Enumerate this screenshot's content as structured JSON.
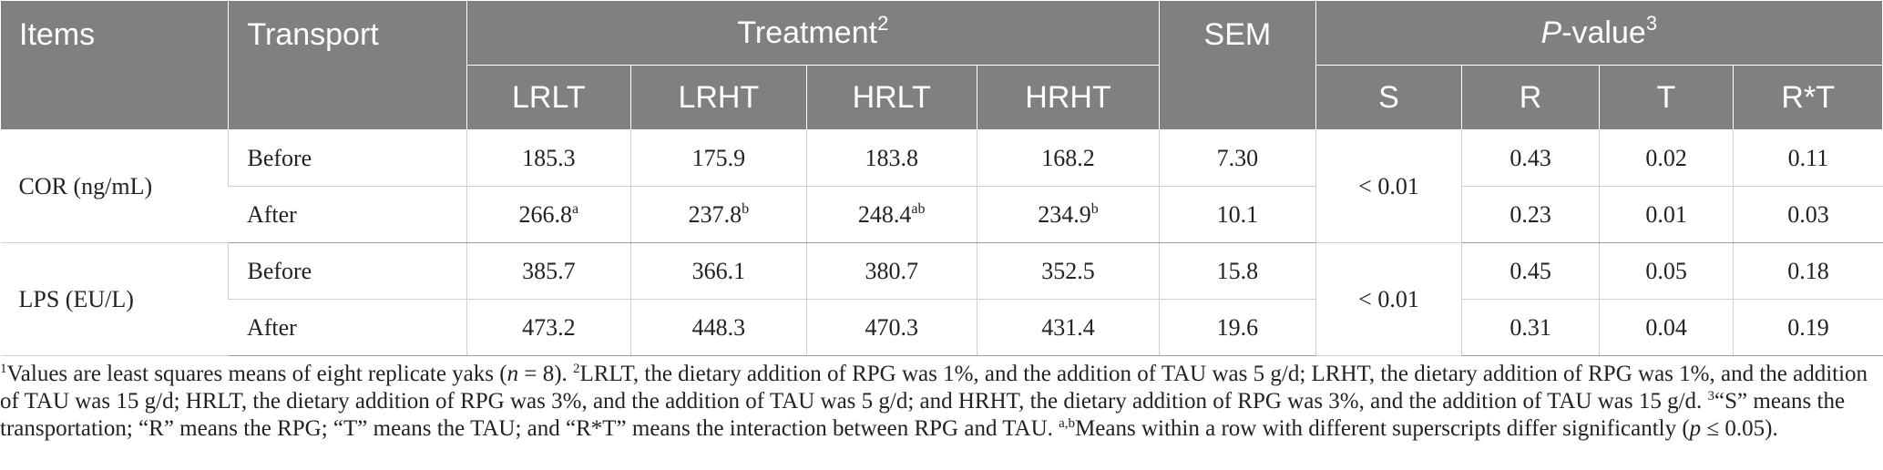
{
  "header": {
    "items": "Items",
    "transport": "Transport",
    "treatment": "Treatment",
    "treatment_sup": "2",
    "sem": "SEM",
    "pvalue_p": "P",
    "pvalue_rest": "-value",
    "pvalue_sup": "3",
    "treatments": [
      "LRLT",
      "LRHT",
      "HRLT",
      "HRHT"
    ],
    "effects": [
      "S",
      "R",
      "T",
      "R*T"
    ]
  },
  "rows": [
    {
      "item": "COR (ng/mL)",
      "s": "< 0.01",
      "sub": [
        {
          "transport": "Before",
          "v": [
            {
              "n": "185.3",
              "s": ""
            },
            {
              "n": "175.9",
              "s": ""
            },
            {
              "n": "183.8",
              "s": ""
            },
            {
              "n": "168.2",
              "s": ""
            }
          ],
          "sem": "7.30",
          "r": "0.43",
          "t": "0.02",
          "rt": "0.11"
        },
        {
          "transport": "After",
          "v": [
            {
              "n": "266.8",
              "s": "a"
            },
            {
              "n": "237.8",
              "s": "b"
            },
            {
              "n": "248.4",
              "s": "ab"
            },
            {
              "n": "234.9",
              "s": "b"
            }
          ],
          "sem": "10.1",
          "r": "0.23",
          "t": "0.01",
          "rt": "0.03"
        }
      ]
    },
    {
      "item": "LPS (EU/L)",
      "s": "< 0.01",
      "sub": [
        {
          "transport": "Before",
          "v": [
            {
              "n": "385.7",
              "s": ""
            },
            {
              "n": "366.1",
              "s": ""
            },
            {
              "n": "380.7",
              "s": ""
            },
            {
              "n": "352.5",
              "s": ""
            }
          ],
          "sem": "15.8",
          "r": "0.45",
          "t": "0.05",
          "rt": "0.18"
        },
        {
          "transport": "After",
          "v": [
            {
              "n": "473.2",
              "s": ""
            },
            {
              "n": "448.3",
              "s": ""
            },
            {
              "n": "470.3",
              "s": ""
            },
            {
              "n": "431.4",
              "s": ""
            }
          ],
          "sem": "19.6",
          "r": "0.31",
          "t": "0.04",
          "rt": "0.19"
        }
      ]
    }
  ],
  "footnote": {
    "sup1": "1",
    "t1": "Values are least squares means of eight replicate yaks (",
    "n_italic": "n",
    "t1b": " = 8). ",
    "sup2": "2",
    "t2": "LRLT, the dietary addition of RPG was 1%, and the addition of TAU was 5 g/d; LRHT, the dietary addition of RPG was 1%, and the addition of TAU was 15 g/d; HRLT, the dietary addition of RPG was 3%, and the addition of TAU was 5 g/d; and HRHT, the dietary addition of RPG was 3%, and the addition of TAU was 15 g/d. ",
    "sup3": "3",
    "t3": "“S” means the transportation; “R” means the RPG; “T” means the TAU; and “R*T” means the interaction between RPG and TAU. ",
    "supab": "a,b",
    "t4": "Means within a row with different superscripts differ significantly (",
    "p_italic": "p",
    "t4b": " ≤ 0.05)."
  }
}
